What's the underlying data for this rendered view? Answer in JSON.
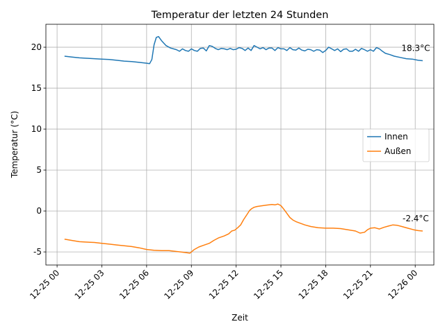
{
  "chart_data": {
    "type": "line",
    "title": "Temperatur der letzten 24 Stunden",
    "xlabel": "Zeit",
    "ylabel": "Temperatur (°C)",
    "xlim_hours": [
      -0.75,
      25.25
    ],
    "ylim": [
      -6.6,
      22.8
    ],
    "grid": true,
    "legend_position": "center-right",
    "x_ticks": [
      {
        "hour": 0,
        "label": "12-25 00"
      },
      {
        "hour": 3,
        "label": "12-25 03"
      },
      {
        "hour": 6,
        "label": "12-25 06"
      },
      {
        "hour": 9,
        "label": "12-25 09"
      },
      {
        "hour": 12,
        "label": "12-25 12"
      },
      {
        "hour": 15,
        "label": "12-25 15"
      },
      {
        "hour": 18,
        "label": "12-25 18"
      },
      {
        "hour": 21,
        "label": "12-25 21"
      },
      {
        "hour": 24,
        "label": "12-26 00"
      }
    ],
    "y_ticks": [
      -5,
      0,
      5,
      10,
      15,
      20
    ],
    "series": [
      {
        "name": "Innen",
        "color": "#1f77b4",
        "x_hours": [
          0.5,
          1.0,
          1.5,
          2.0,
          2.5,
          3.0,
          3.5,
          4.0,
          4.5,
          5.0,
          5.5,
          6.0,
          6.2,
          6.35,
          6.5,
          6.65,
          6.8,
          7.0,
          7.3,
          7.6,
          8.0,
          8.2,
          8.4,
          8.6,
          8.8,
          9.0,
          9.2,
          9.4,
          9.6,
          9.8,
          10.0,
          10.2,
          10.4,
          10.6,
          10.8,
          11.0,
          11.2,
          11.4,
          11.6,
          11.8,
          12.0,
          12.2,
          12.4,
          12.6,
          12.8,
          13.0,
          13.2,
          13.4,
          13.6,
          13.8,
          14.0,
          14.2,
          14.4,
          14.6,
          14.8,
          15.0,
          15.2,
          15.4,
          15.6,
          15.8,
          16.0,
          16.2,
          16.4,
          16.6,
          16.8,
          17.0,
          17.2,
          17.4,
          17.6,
          17.8,
          18.0,
          18.2,
          18.4,
          18.6,
          18.8,
          19.0,
          19.2,
          19.4,
          19.6,
          19.8,
          20.0,
          20.2,
          20.4,
          20.6,
          20.8,
          21.0,
          21.2,
          21.4,
          21.6,
          21.8,
          22.0,
          22.3,
          22.6,
          23.0,
          23.4,
          23.8,
          24.2,
          24.5
        ],
        "y": [
          18.9,
          18.8,
          18.7,
          18.65,
          18.6,
          18.55,
          18.5,
          18.4,
          18.3,
          18.25,
          18.15,
          18.05,
          18.0,
          18.5,
          20.3,
          21.2,
          21.3,
          20.8,
          20.2,
          19.9,
          19.7,
          19.5,
          19.8,
          19.6,
          19.5,
          19.8,
          19.6,
          19.5,
          19.85,
          19.9,
          19.55,
          20.2,
          20.1,
          19.85,
          19.7,
          19.85,
          19.8,
          19.7,
          19.85,
          19.7,
          19.75,
          19.95,
          19.85,
          19.6,
          19.9,
          19.6,
          20.2,
          20.0,
          19.8,
          19.95,
          19.7,
          19.9,
          19.9,
          19.6,
          19.95,
          19.8,
          19.8,
          19.6,
          19.95,
          19.7,
          19.65,
          19.9,
          19.65,
          19.55,
          19.75,
          19.7,
          19.5,
          19.7,
          19.65,
          19.35,
          19.6,
          20.0,
          19.8,
          19.6,
          19.8,
          19.45,
          19.75,
          19.8,
          19.5,
          19.5,
          19.75,
          19.5,
          19.85,
          19.7,
          19.5,
          19.7,
          19.5,
          19.95,
          19.8,
          19.5,
          19.25,
          19.1,
          18.9,
          18.75,
          18.6,
          18.55,
          18.4,
          18.35
        ],
        "end_label": "18.3°C"
      },
      {
        "name": "Außen",
        "color": "#ff7f0e",
        "x_hours": [
          0.5,
          1.0,
          1.5,
          2.0,
          2.5,
          3.0,
          3.5,
          4.0,
          4.5,
          5.0,
          5.5,
          6.0,
          6.5,
          7.0,
          7.5,
          8.0,
          8.5,
          8.9,
          9.2,
          9.5,
          9.8,
          10.2,
          10.5,
          10.8,
          11.2,
          11.5,
          11.7,
          11.9,
          12.1,
          12.3,
          12.5,
          12.7,
          12.9,
          13.05,
          13.2,
          13.4,
          13.6,
          13.8,
          14.0,
          14.2,
          14.4,
          14.6,
          14.8,
          15.0,
          15.2,
          15.4,
          15.6,
          15.8,
          16.0,
          16.3,
          16.6,
          17.0,
          17.5,
          18.0,
          18.5,
          19.0,
          19.5,
          20.0,
          20.3,
          20.6,
          20.8,
          21.0,
          21.3,
          21.6,
          21.9,
          22.2,
          22.5,
          22.8,
          23.1,
          23.5,
          23.9,
          24.2,
          24.5
        ],
        "y": [
          -3.45,
          -3.6,
          -3.75,
          -3.8,
          -3.85,
          -3.95,
          -4.05,
          -4.15,
          -4.25,
          -4.35,
          -4.5,
          -4.7,
          -4.8,
          -4.85,
          -4.85,
          -4.95,
          -5.05,
          -5.15,
          -4.7,
          -4.4,
          -4.2,
          -3.95,
          -3.6,
          -3.3,
          -3.05,
          -2.8,
          -2.45,
          -2.35,
          -2.05,
          -1.7,
          -1.05,
          -0.5,
          0.05,
          0.3,
          0.45,
          0.55,
          0.6,
          0.65,
          0.7,
          0.75,
          0.8,
          0.75,
          0.85,
          0.65,
          0.2,
          -0.3,
          -0.8,
          -1.1,
          -1.3,
          -1.5,
          -1.7,
          -1.9,
          -2.05,
          -2.1,
          -2.1,
          -2.15,
          -2.3,
          -2.45,
          -2.7,
          -2.6,
          -2.3,
          -2.1,
          -2.05,
          -2.2,
          -2.0,
          -1.85,
          -1.7,
          -1.75,
          -1.9,
          -2.1,
          -2.3,
          -2.4,
          -2.45
        ],
        "end_label": "-2.4°C"
      }
    ]
  }
}
